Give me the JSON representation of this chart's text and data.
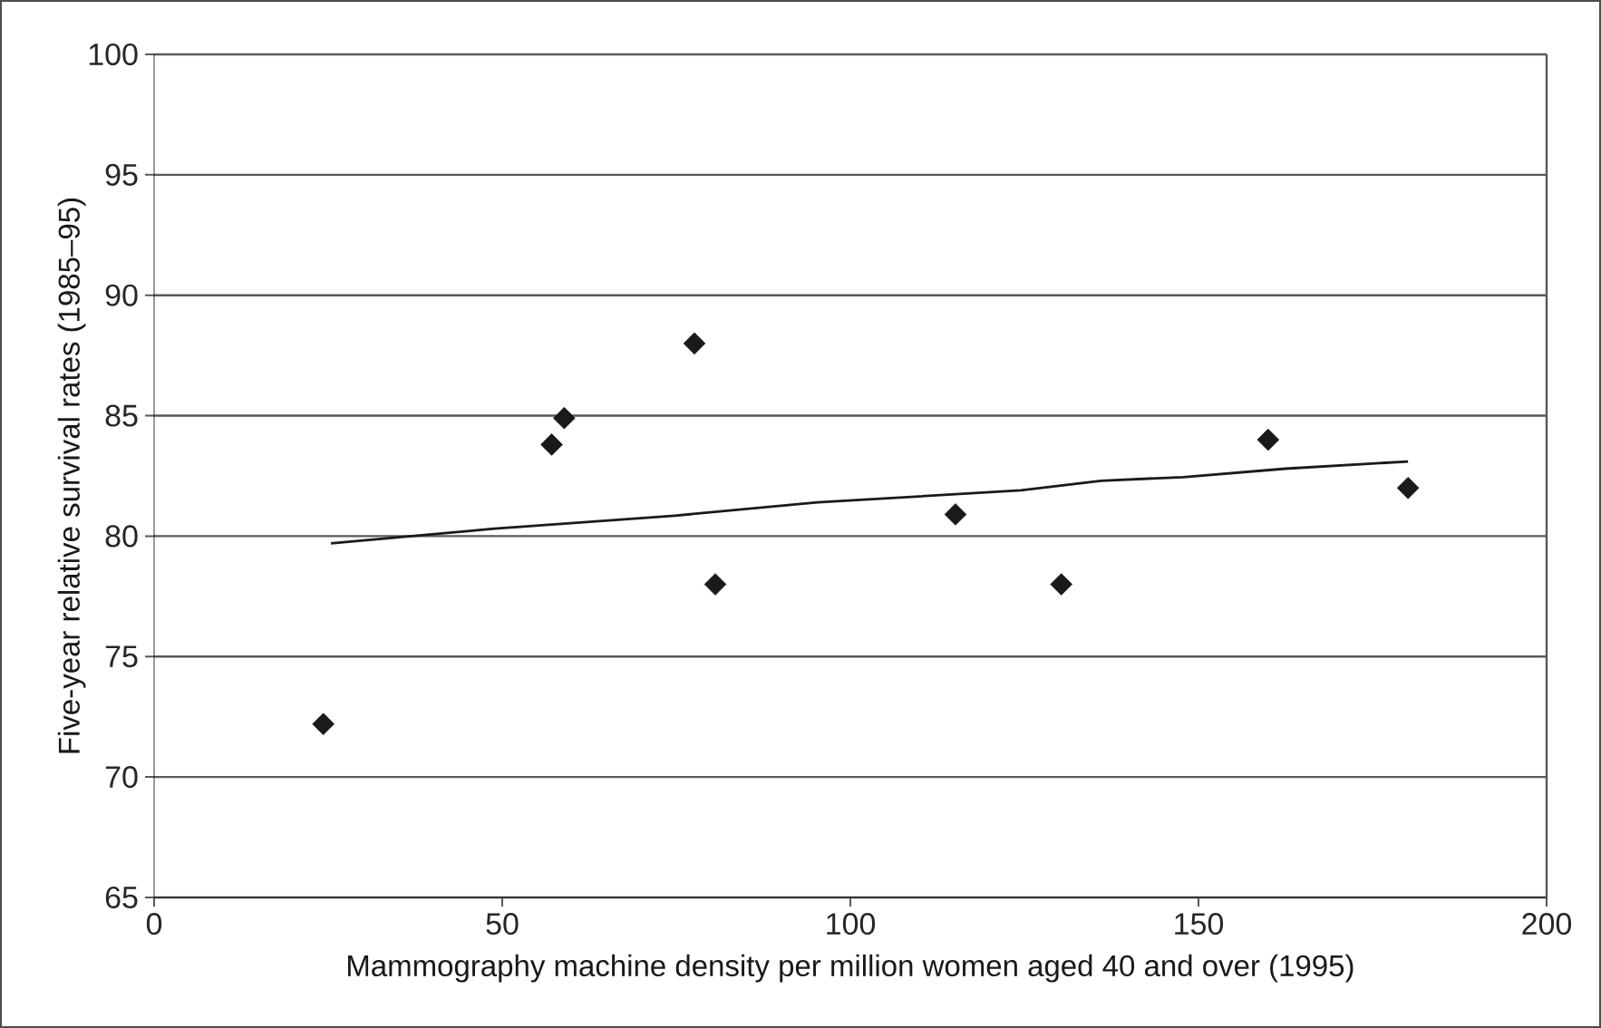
{
  "chart_data": {
    "type": "scatter",
    "xlabel": "Mammography machine density per million women aged 40 and over (1995)",
    "ylabel": "Five-year relative survival rates (1985–95)",
    "xlim": [
      0,
      200
    ],
    "xticks": [
      0,
      50,
      100,
      150,
      200
    ],
    "ylim": [
      65,
      100
    ],
    "yticks": [
      65,
      70,
      75,
      80,
      85,
      90,
      95,
      100
    ],
    "grid": "y",
    "series": [
      {
        "marker": "diamond",
        "color": "#1a1a1a",
        "x": [
          24.3,
          57.1,
          58.9,
          77.6,
          80.6,
          115.1,
          130.3,
          160.0,
          180.1
        ],
        "values": [
          72.2,
          83.8,
          84.9,
          88.0,
          78.0,
          80.9,
          78.0,
          84.0,
          82.0
        ]
      },
      {
        "type": "line",
        "marker": "none",
        "line_style": "solid",
        "color": "#1a1a1a",
        "x": [
          25.4,
          48.5,
          74.8,
          95.3,
          124.5,
          136,
          147.8,
          162.5,
          180.1
        ],
        "values": [
          79.7,
          80.3,
          80.85,
          81.4,
          81.9,
          82.3,
          82.45,
          82.8,
          83.1
        ]
      }
    ]
  }
}
